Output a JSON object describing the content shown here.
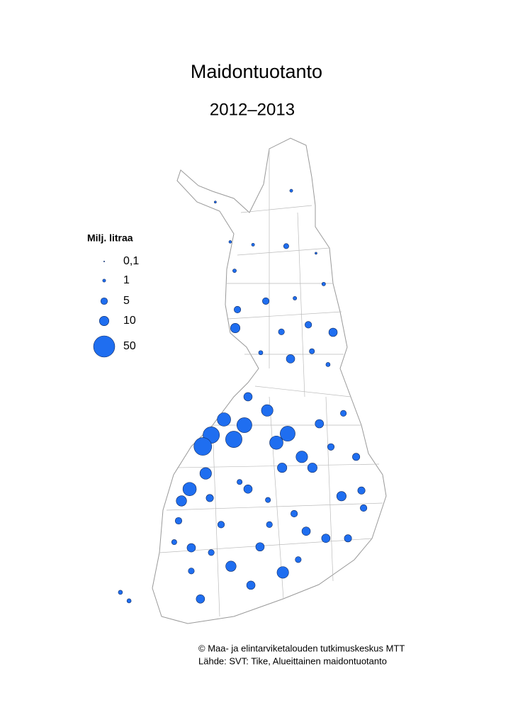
{
  "title": "Maidontuotanto",
  "subtitle": "2012–2013",
  "legend": {
    "title": "Milj. litraa",
    "items": [
      {
        "value": 0.1,
        "label": "0,1"
      },
      1,
      5,
      10,
      50
    ]
  },
  "color": "#1f6ef0",
  "points": [
    {
      "lon": 27.55,
      "lat": 68.89,
      "value": 1
    },
    {
      "lon": 24.39,
      "lat": 68.65,
      "value": 0.5
    },
    {
      "lon": 27.34,
      "lat": 67.72,
      "value": 3
    },
    {
      "lon": 25.96,
      "lat": 67.75,
      "value": 1
    },
    {
      "lon": 25.01,
      "lat": 67.81,
      "value": 0.8
    },
    {
      "lon": 28.58,
      "lat": 67.57,
      "value": 0.5
    },
    {
      "lon": 25.19,
      "lat": 67.2,
      "value": 1.5
    },
    {
      "lon": 28.9,
      "lat": 66.92,
      "value": 1.5
    },
    {
      "lon": 26.49,
      "lat": 66.56,
      "value": 5
    },
    {
      "lon": 25.31,
      "lat": 66.38,
      "value": 5
    },
    {
      "lon": 27.7,
      "lat": 66.62,
      "value": 1.5
    },
    {
      "lon": 25.22,
      "lat": 65.99,
      "value": 10
    },
    {
      "lon": 28.26,
      "lat": 66.06,
      "value": 5
    },
    {
      "lon": 29.29,
      "lat": 65.9,
      "value": 8
    },
    {
      "lon": 27.14,
      "lat": 65.91,
      "value": 4
    },
    {
      "lon": 27.52,
      "lat": 65.34,
      "value": 8
    },
    {
      "lon": 28.41,
      "lat": 65.5,
      "value": 3
    },
    {
      "lon": 26.28,
      "lat": 65.47,
      "value": 2
    },
    {
      "lon": 29.08,
      "lat": 65.22,
      "value": 2
    },
    {
      "lon": 26.55,
      "lat": 64.25,
      "value": 15
    },
    {
      "lon": 25.75,
      "lat": 64.54,
      "value": 8
    },
    {
      "lon": 24.75,
      "lat": 64.06,
      "value": 20
    },
    {
      "lon": 24.22,
      "lat": 63.73,
      "value": 30
    },
    {
      "lon": 23.87,
      "lat": 63.49,
      "value": 35
    },
    {
      "lon": 25.6,
      "lat": 63.94,
      "value": 25
    },
    {
      "lon": 25.16,
      "lat": 63.64,
      "value": 30
    },
    {
      "lon": 27.4,
      "lat": 63.76,
      "value": 25
    },
    {
      "lon": 26.93,
      "lat": 63.57,
      "value": 20
    },
    {
      "lon": 27.99,
      "lat": 63.27,
      "value": 15
    },
    {
      "lon": 28.43,
      "lat": 63.04,
      "value": 10
    },
    {
      "lon": 28.72,
      "lat": 63.97,
      "value": 8
    },
    {
      "lon": 29.72,
      "lat": 64.19,
      "value": 4
    },
    {
      "lon": 30.25,
      "lat": 63.27,
      "value": 6
    },
    {
      "lon": 29.2,
      "lat": 63.48,
      "value": 5
    },
    {
      "lon": 23.32,
      "lat": 62.59,
      "value": 20
    },
    {
      "lon": 22.98,
      "lat": 62.34,
      "value": 12
    },
    {
      "lon": 23.99,
      "lat": 62.92,
      "value": 15
    },
    {
      "lon": 25.75,
      "lat": 62.59,
      "value": 8
    },
    {
      "lon": 27.17,
      "lat": 63.04,
      "value": 10
    },
    {
      "lon": 29.64,
      "lat": 62.44,
      "value": 10
    },
    {
      "lon": 30.47,
      "lat": 62.56,
      "value": 6
    },
    {
      "lon": 30.56,
      "lat": 62.19,
      "value": 5
    },
    {
      "lon": 27.67,
      "lat": 62.07,
      "value": 5
    },
    {
      "lon": 28.17,
      "lat": 61.7,
      "value": 8
    },
    {
      "lon": 29.91,
      "lat": 61.55,
      "value": 6
    },
    {
      "lon": 23.39,
      "lat": 61.35,
      "value": 8
    },
    {
      "lon": 26.25,
      "lat": 61.37,
      "value": 8
    },
    {
      "lon": 25.04,
      "lat": 60.96,
      "value": 12
    },
    {
      "lon": 27.2,
      "lat": 60.83,
      "value": 15
    },
    {
      "lon": 23.77,
      "lat": 60.27,
      "value": 8
    },
    {
      "lon": 25.87,
      "lat": 60.56,
      "value": 8
    },
    {
      "lon": 22.68,
      "lat": 61.47,
      "value": 3
    },
    {
      "lon": 22.86,
      "lat": 61.92,
      "value": 5
    },
    {
      "lon": 20.44,
      "lat": 60.41,
      "value": 2
    },
    {
      "lon": 20.8,
      "lat": 60.23,
      "value": 2
    },
    {
      "lon": 24.63,
      "lat": 61.84,
      "value": 5
    },
    {
      "lon": 28.99,
      "lat": 61.55,
      "value": 8
    },
    {
      "lon": 24.22,
      "lat": 61.25,
      "value": 4
    },
    {
      "lon": 27.84,
      "lat": 61.1,
      "value": 4
    },
    {
      "lon": 26.64,
      "lat": 61.84,
      "value": 4
    },
    {
      "lon": 23.39,
      "lat": 60.86,
      "value": 4
    },
    {
      "lon": 26.58,
      "lat": 62.36,
      "value": 3
    },
    {
      "lon": 24.16,
      "lat": 62.4,
      "value": 6
    },
    {
      "lon": 25.4,
      "lat": 62.74,
      "value": 3
    }
  ],
  "credits": [
    "© Maa- ja elintarviketalouden tutkimuskeskus MTT",
    "Lähde: SVT: Tike, Alueittainen maidontuotanto"
  ]
}
